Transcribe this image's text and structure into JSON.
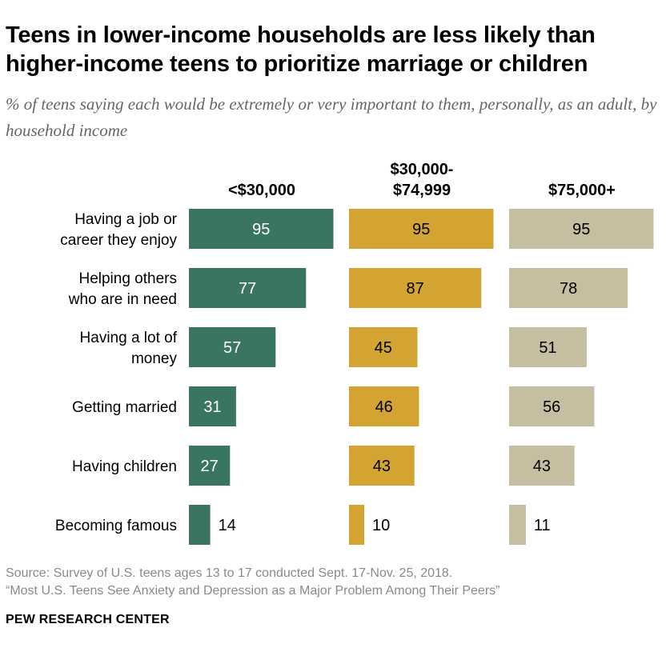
{
  "title": "Teens in lower-income households are less likely than higher-income teens to prioritize marriage or children",
  "subtitle": "% of teens saying each would be extremely or very important to them, personally, as an adult, by household income",
  "source": {
    "line1": "Source: Survey of U.S. teens ages 13 to 17 conducted Sept. 17-Nov. 25, 2018.",
    "line2": "“Most U.S. Teens See Anxiety and Depression as a Major Problem Among Their Peers”"
  },
  "footer": "PEW RESEARCH CENTER",
  "chart_data": {
    "type": "bar",
    "orientation": "horizontal",
    "layout": "small-multiples",
    "categories": [
      [
        "Having a job or",
        "career they enjoy"
      ],
      [
        "Helping others",
        "who are in need"
      ],
      [
        "Having a lot of",
        "money"
      ],
      [
        "Getting married"
      ],
      [
        "Having children"
      ],
      [
        "Becoming famous"
      ]
    ],
    "series": [
      {
        "name": [
          "<$30,000"
        ],
        "color": "#3a7563",
        "label_color": "#ffffff",
        "values": [
          95,
          77,
          57,
          31,
          27,
          14
        ]
      },
      {
        "name": [
          "$30,000-",
          "$74,999"
        ],
        "color": "#d3a431",
        "label_color": "#000000",
        "values": [
          95,
          87,
          45,
          46,
          43,
          10
        ]
      },
      {
        "name": [
          "$75,000+"
        ],
        "color": "#c5bea0",
        "label_color": "#000000",
        "values": [
          95,
          78,
          51,
          56,
          43,
          11
        ]
      }
    ],
    "xlim": [
      0,
      100
    ],
    "grid": false,
    "legend": "none"
  }
}
